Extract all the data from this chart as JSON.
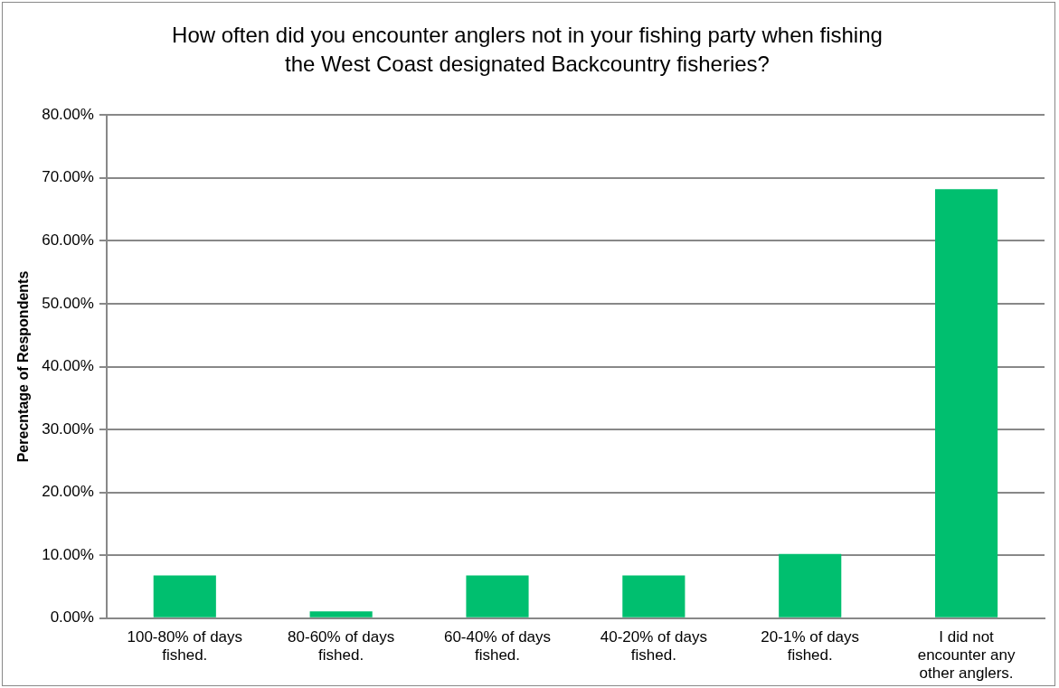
{
  "chart_data": {
    "type": "bar",
    "title": "How often did you encounter anglers not in your fishing party when fishing the West Coast designated Backcountry fisheries?",
    "ylabel": "Perecntage of Respondents",
    "categories": [
      "100-80% of days fished.",
      "80-60% of days fished.",
      "60-40% of days fished.",
      "40-20% of days fished.",
      "20-1% of days fished.",
      "I did not encounter any other anglers."
    ],
    "values": [
      6.8,
      1.1,
      6.8,
      6.8,
      10.2,
      68.2
    ],
    "color": "#00bf6f",
    "ylim": [
      0,
      80
    ],
    "yticks": [
      {
        "value": 0,
        "label": "0.00%"
      },
      {
        "value": 10,
        "label": "10.00%"
      },
      {
        "value": 20,
        "label": "20.00%"
      },
      {
        "value": 30,
        "label": "30.00%"
      },
      {
        "value": 40,
        "label": "40.00%"
      },
      {
        "value": 50,
        "label": "50.00%"
      },
      {
        "value": 60,
        "label": "60.00%"
      },
      {
        "value": 70,
        "label": "70.00%"
      },
      {
        "value": 80,
        "label": "80.00%"
      }
    ],
    "grid": "y",
    "legend": false
  }
}
